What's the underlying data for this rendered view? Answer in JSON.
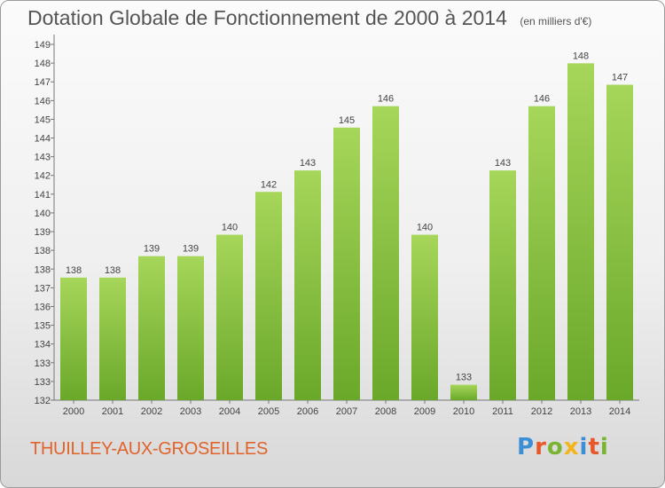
{
  "title": "Dotation Globale de Fonctionnement de 2000 à 2014",
  "subtitle": "(en milliers d'€)",
  "commune": "THUILLEY-AUX-GROSEILLES",
  "logo": {
    "text": "Proxiti",
    "letter_colors": [
      "#3a8fd6",
      "#e8572a",
      "#7ab531",
      "#f3b51b",
      "#3a8fd6",
      "#e8572a",
      "#7ab531"
    ]
  },
  "colors": {
    "bar_light": "#a6d65a",
    "bar_dark": "#6aa82a",
    "title": "#555555",
    "commune": "#e0632b"
  },
  "chart_data": {
    "type": "bar",
    "categories": [
      "2000",
      "2001",
      "2002",
      "2003",
      "2004",
      "2005",
      "2006",
      "2007",
      "2008",
      "2009",
      "2010",
      "2011",
      "2012",
      "2013",
      "2014"
    ],
    "values": [
      138,
      138,
      139,
      139,
      140,
      142,
      143,
      145,
      146,
      140,
      133,
      143,
      146,
      148,
      147
    ],
    "value_labels": [
      "138",
      "138",
      "139",
      "139",
      "140",
      "142",
      "143",
      "145",
      "146",
      "140",
      "133",
      "143",
      "146",
      "148",
      "147"
    ],
    "y_tick_labels": [
      "132",
      "133",
      "133",
      "134",
      "135",
      "136",
      "137",
      "138",
      "138",
      "139",
      "140",
      "141",
      "142",
      "143",
      "144",
      "145",
      "146",
      "147",
      "148",
      "149"
    ],
    "ylim": [
      132.28,
      149.34
    ],
    "xlabel": "",
    "ylabel": "",
    "grid": false,
    "legend": "none"
  }
}
